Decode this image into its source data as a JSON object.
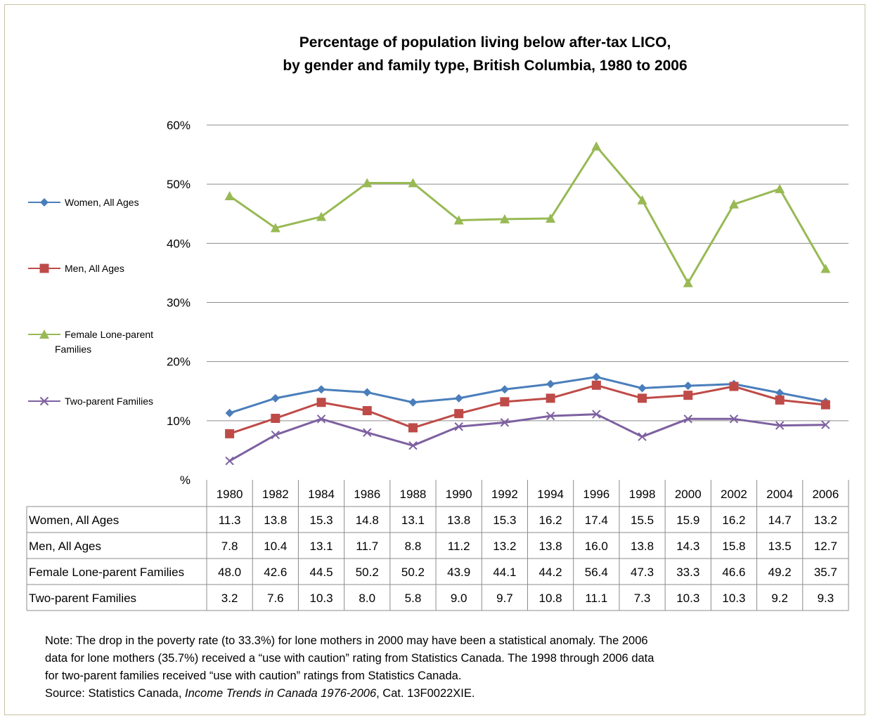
{
  "chart_data": {
    "type": "line",
    "title": "Percentage of population living below after-tax LICO,",
    "subtitle": "by gender and family type, British Columbia, 1980 to 2006",
    "x": [
      "1980",
      "1982",
      "1984",
      "1986",
      "1988",
      "1990",
      "1992",
      "1994",
      "1996",
      "1998",
      "2000",
      "2002",
      "2004",
      "2006"
    ],
    "y_ticks": [
      "%",
      "10%",
      "20%",
      "30%",
      "40%",
      "50%",
      "60%"
    ],
    "ylim": [
      0,
      60
    ],
    "grid": true,
    "legend_position": "left",
    "series": [
      {
        "name": "Women, All Ages",
        "table_label": "Women, All Ages",
        "color": "#4a7ebb",
        "marker": "diamond",
        "values": [
          11.3,
          13.8,
          15.3,
          14.8,
          13.1,
          13.8,
          15.3,
          16.2,
          17.4,
          15.5,
          15.9,
          16.2,
          14.7,
          13.2
        ],
        "display": [
          "11.3",
          "13.8",
          "15.3",
          "14.8",
          "13.1",
          "13.8",
          "15.3",
          "16.2",
          "17.4",
          "15.5",
          "15.9",
          "16.2",
          "14.7",
          "13.2"
        ]
      },
      {
        "name": "Men, All Ages",
        "table_label": "Men, All Ages",
        "color": "#be4b48",
        "marker": "square",
        "values": [
          7.8,
          10.4,
          13.1,
          11.7,
          8.8,
          11.2,
          13.2,
          13.8,
          16.0,
          13.8,
          14.3,
          15.8,
          13.5,
          12.7
        ],
        "display": [
          "7.8",
          "10.4",
          "13.1",
          "11.7",
          "8.8",
          "11.2",
          "13.2",
          "13.8",
          "16.0",
          "13.8",
          "14.3",
          "15.8",
          "13.5",
          "12.7"
        ]
      },
      {
        "name": "Female Lone-parent Families",
        "legend_lines": [
          "Female Lone-parent",
          "Families"
        ],
        "table_label": "Female Lone-parent Families",
        "color": "#98b954",
        "marker": "triangle",
        "values": [
          48.0,
          42.6,
          44.5,
          50.2,
          50.2,
          43.9,
          44.1,
          44.2,
          56.4,
          47.3,
          33.3,
          46.6,
          49.2,
          35.7
        ],
        "display": [
          "48.0",
          "42.6",
          "44.5",
          "50.2",
          "50.2",
          "43.9",
          "44.1",
          "44.2",
          "56.4",
          "47.3",
          "33.3",
          "46.6",
          "49.2",
          "35.7"
        ]
      },
      {
        "name": "Two-parent Families",
        "table_label": "Two-parent Families",
        "color": "#7d60a0",
        "marker": "x",
        "values": [
          3.2,
          7.6,
          10.3,
          8.0,
          5.8,
          9.0,
          9.7,
          10.8,
          11.1,
          7.3,
          10.3,
          10.3,
          9.2,
          9.3
        ],
        "display": [
          "3.2",
          "7.6",
          "10.3",
          "8.0",
          "5.8",
          "9.0",
          "9.7",
          "10.8",
          "11.1",
          "7.3",
          "10.3",
          "10.3",
          "9.2",
          "9.3"
        ]
      }
    ]
  },
  "note": {
    "line1": "Note: The drop in the poverty  rate (to 33.3%) for lone mothers in 2000 may have been a statistical anomaly. The 2006",
    "line2": "data for lone mothers (35.7%) received  a “use with caution” rating from Statistics Canada. The 1998 through  2006 data",
    "line3": "for two-parent families received “use with caution” ratings from Statistics Canada.",
    "source_prefix": "Source: Statistics Canada, ",
    "source_title": "Income Trends in Canada 1976-2006",
    "source_suffix": ", Cat. 13F0022XIE."
  }
}
